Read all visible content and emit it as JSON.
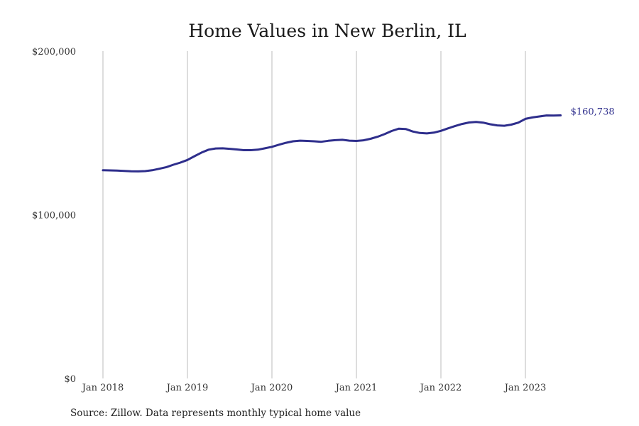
{
  "chart_data": {
    "type": "line",
    "title": "Home Values in New Berlin, IL",
    "xlabel": "",
    "ylabel": "",
    "x_tick_labels": [
      "Jan 2018",
      "Jan 2019",
      "Jan 2020",
      "Jan 2021",
      "Jan 2022",
      "Jan 2023"
    ],
    "x_tick_dates": [
      "2018-01",
      "2019-01",
      "2020-01",
      "2021-01",
      "2022-01",
      "2023-01"
    ],
    "y_tick_labels": [
      "$0",
      "$100,000",
      "$200,000"
    ],
    "y_tick_values": [
      0,
      100000,
      200000
    ],
    "ylim": [
      0,
      200000
    ],
    "xlim": [
      "2018-01",
      "2023-12"
    ],
    "grid": "vertical",
    "line_color": "#2e2e8c",
    "grid_color": "#bbbbbb",
    "end_label": "$160,738",
    "series": [
      {
        "points": [
          [
            "2018-01",
            127200
          ],
          [
            "2018-02",
            127100
          ],
          [
            "2018-03",
            127000
          ],
          [
            "2018-04",
            126800
          ],
          [
            "2018-05",
            126600
          ],
          [
            "2018-06",
            126500
          ],
          [
            "2018-07",
            126700
          ],
          [
            "2018-08",
            127200
          ],
          [
            "2018-09",
            128100
          ],
          [
            "2018-10",
            129100
          ],
          [
            "2018-11",
            130600
          ],
          [
            "2018-12",
            131900
          ],
          [
            "2019-01",
            133500
          ],
          [
            "2019-02",
            135800
          ],
          [
            "2019-03",
            138000
          ],
          [
            "2019-04",
            139800
          ],
          [
            "2019-05",
            140500
          ],
          [
            "2019-06",
            140600
          ],
          [
            "2019-07",
            140300
          ],
          [
            "2019-08",
            139900
          ],
          [
            "2019-09",
            139500
          ],
          [
            "2019-10",
            139500
          ],
          [
            "2019-11",
            139800
          ],
          [
            "2019-12",
            140600
          ],
          [
            "2020-01",
            141500
          ],
          [
            "2020-02",
            142800
          ],
          [
            "2020-03",
            144000
          ],
          [
            "2020-04",
            144900
          ],
          [
            "2020-05",
            145300
          ],
          [
            "2020-06",
            145100
          ],
          [
            "2020-07",
            144900
          ],
          [
            "2020-08",
            144600
          ],
          [
            "2020-09",
            145200
          ],
          [
            "2020-10",
            145600
          ],
          [
            "2020-11",
            145800
          ],
          [
            "2020-12",
            145300
          ],
          [
            "2021-01",
            145100
          ],
          [
            "2021-02",
            145500
          ],
          [
            "2021-03",
            146400
          ],
          [
            "2021-04",
            147700
          ],
          [
            "2021-05",
            149300
          ],
          [
            "2021-06",
            151200
          ],
          [
            "2021-07",
            152600
          ],
          [
            "2021-08",
            152400
          ],
          [
            "2021-09",
            150900
          ],
          [
            "2021-10",
            150000
          ],
          [
            "2021-11",
            149700
          ],
          [
            "2021-12",
            150200
          ],
          [
            "2022-01",
            151300
          ],
          [
            "2022-02",
            152800
          ],
          [
            "2022-03",
            154200
          ],
          [
            "2022-04",
            155500
          ],
          [
            "2022-05",
            156400
          ],
          [
            "2022-06",
            156700
          ],
          [
            "2022-07",
            156300
          ],
          [
            "2022-08",
            155300
          ],
          [
            "2022-09",
            154600
          ],
          [
            "2022-10",
            154400
          ],
          [
            "2022-11",
            155100
          ],
          [
            "2022-12",
            156300
          ],
          [
            "2023-01",
            158600
          ],
          [
            "2023-02",
            159500
          ],
          [
            "2023-03",
            160100
          ],
          [
            "2023-04",
            160700
          ],
          [
            "2023-05",
            160600
          ],
          [
            "2023-06",
            160738
          ]
        ]
      }
    ]
  },
  "source_note": "Source: Zillow. Data represents monthly typical home value"
}
